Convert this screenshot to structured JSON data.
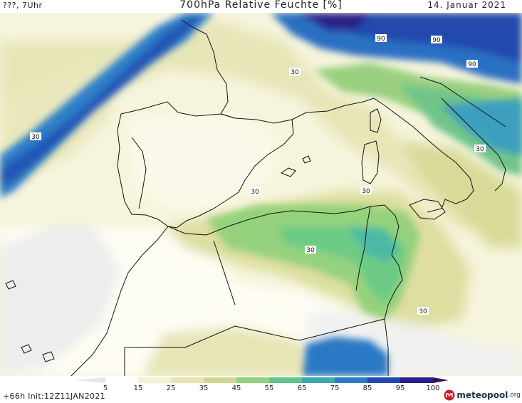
{
  "header": {
    "left": "???, 7Uhr",
    "title": "700hPa Relative Feuchte [%]",
    "date": "14. Januar 2021"
  },
  "map": {
    "contour_labels": [
      "30",
      "90"
    ],
    "colors": {
      "lt5": "#eeeeee",
      "c5": "#ffffff",
      "c15": "#f7f5de",
      "c25": "#e8e7b8",
      "c35": "#cdd68f",
      "c45": "#8fd27a",
      "c55": "#5dc889",
      "c65": "#3aa9b6",
      "c75": "#2a7cc6",
      "c85": "#1e49b0",
      "c95": "#2a1f8a"
    }
  },
  "legend": {
    "ticks": [
      "5",
      "15",
      "25",
      "35",
      "45",
      "55",
      "65",
      "75",
      "85",
      "95",
      "100"
    ],
    "colors": [
      "#ffffff",
      "#f4f2d4",
      "#e6e4b2",
      "#cfd692",
      "#93d17c",
      "#5ec68a",
      "#3ca8b4",
      "#2b7ac5",
      "#1f48b0",
      "#2a1f8a"
    ]
  },
  "footer": {
    "init": "+66h Init:12Z11JAN2021",
    "brand": "meteopool",
    "brand_tld": ".org"
  }
}
